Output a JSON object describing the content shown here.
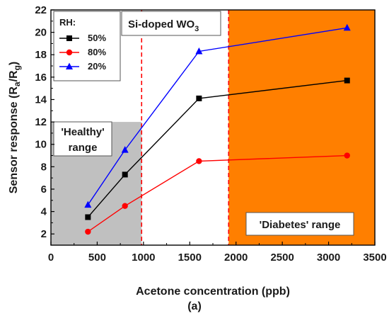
{
  "chart_data": {
    "type": "line",
    "x": [
      400,
      800,
      1600,
      3200
    ],
    "series": [
      {
        "name": "50%",
        "color": "#000000",
        "marker": "square",
        "values": [
          3.5,
          7.3,
          14.1,
          15.7
        ]
      },
      {
        "name": "80%",
        "color": "#ff0000",
        "marker": "circle",
        "values": [
          2.2,
          4.5,
          8.5,
          9.0
        ]
      },
      {
        "name": "20%",
        "color": "#0000ff",
        "marker": "triangle",
        "values": [
          4.6,
          9.5,
          18.3,
          20.4
        ]
      }
    ],
    "xlabel": "Acetone concentration (ppb)",
    "ylabel_parts": {
      "main": "Sensor response (R",
      "sub1": "a",
      "mid": "/R",
      "sub2": "g",
      "end": ")"
    },
    "xlim": [
      0,
      3500
    ],
    "ylim": [
      1,
      22
    ],
    "xticks": [
      0,
      500,
      1000,
      1500,
      2000,
      2500,
      3000,
      3500
    ],
    "yticks": [
      2,
      4,
      6,
      8,
      10,
      12,
      14,
      16,
      18,
      20,
      22
    ],
    "grid": false,
    "legend": {
      "title": "RH:",
      "placement": "top-left",
      "entries": [
        "50%",
        "80%",
        "20%"
      ]
    },
    "regions": {
      "healthy": {
        "x_range": [
          0,
          980
        ],
        "y_range": [
          1,
          12
        ],
        "color": "#c0c0c0",
        "label_line1": "'Healthy'",
        "label_line2": "range"
      },
      "diabetes": {
        "x_range": [
          1920,
          3500
        ],
        "y_range": [
          1,
          22
        ],
        "color": "#ff7f00",
        "label": "'Diabetes' range"
      }
    },
    "dashed_lines_x": [
      980,
      1920
    ],
    "annotation": {
      "main": "Si-doped WO",
      "sub": "3"
    },
    "panel_label": "(a)"
  }
}
